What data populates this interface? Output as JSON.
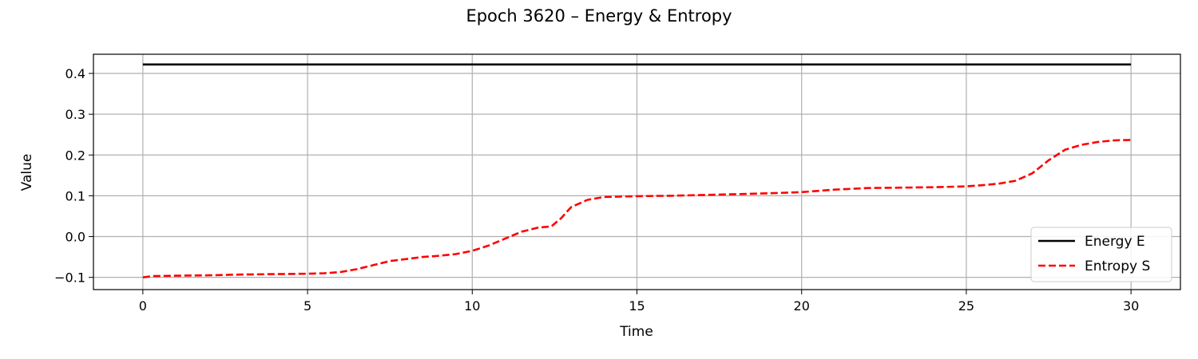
{
  "chart_data": {
    "type": "line",
    "title": "Epoch 3620 – Energy & Entropy",
    "xlabel": "Time",
    "ylabel": "Value",
    "xlim": [
      -1.5,
      31.5
    ],
    "ylim": [
      -0.13,
      0.447
    ],
    "xticks": [
      0,
      5,
      10,
      15,
      20,
      25,
      30
    ],
    "xtick_labels": [
      "0",
      "5",
      "10",
      "15",
      "20",
      "25",
      "30"
    ],
    "yticks": [
      -0.1,
      0.0,
      0.1,
      0.2,
      0.3,
      0.4
    ],
    "ytick_labels": [
      "−0.1",
      "0.0",
      "0.1",
      "0.2",
      "0.3",
      "0.4"
    ],
    "grid": true,
    "legend_position": "lower-right",
    "series": [
      {
        "name": "Energy E",
        "color": "#000000",
        "style": "solid",
        "x": [
          0,
          30
        ],
        "y": [
          0.422,
          0.422
        ]
      },
      {
        "name": "Entropy S",
        "color": "#ff0000",
        "style": "dashed",
        "x": [
          0,
          0.3,
          1,
          2,
          3,
          4,
          5,
          5.5,
          6,
          6.5,
          7,
          7.5,
          8,
          8.5,
          9,
          9.5,
          10,
          10.5,
          11,
          11.5,
          12,
          12.4,
          12.7,
          13,
          13.5,
          14,
          15,
          16,
          17,
          18,
          19,
          20,
          21,
          22,
          23,
          24,
          25,
          25.5,
          26,
          26.5,
          27,
          27.5,
          28,
          28.5,
          29,
          29.5,
          30
        ],
        "y": [
          -0.1,
          -0.097,
          -0.096,
          -0.095,
          -0.093,
          -0.092,
          -0.091,
          -0.09,
          -0.087,
          -0.08,
          -0.07,
          -0.06,
          -0.055,
          -0.05,
          -0.047,
          -0.043,
          -0.035,
          -0.022,
          -0.005,
          0.012,
          0.022,
          0.025,
          0.045,
          0.072,
          0.09,
          0.097,
          0.099,
          0.1,
          0.102,
          0.104,
          0.106,
          0.109,
          0.115,
          0.119,
          0.12,
          0.121,
          0.123,
          0.126,
          0.13,
          0.137,
          0.155,
          0.187,
          0.213,
          0.225,
          0.232,
          0.236,
          0.237
        ]
      }
    ]
  }
}
